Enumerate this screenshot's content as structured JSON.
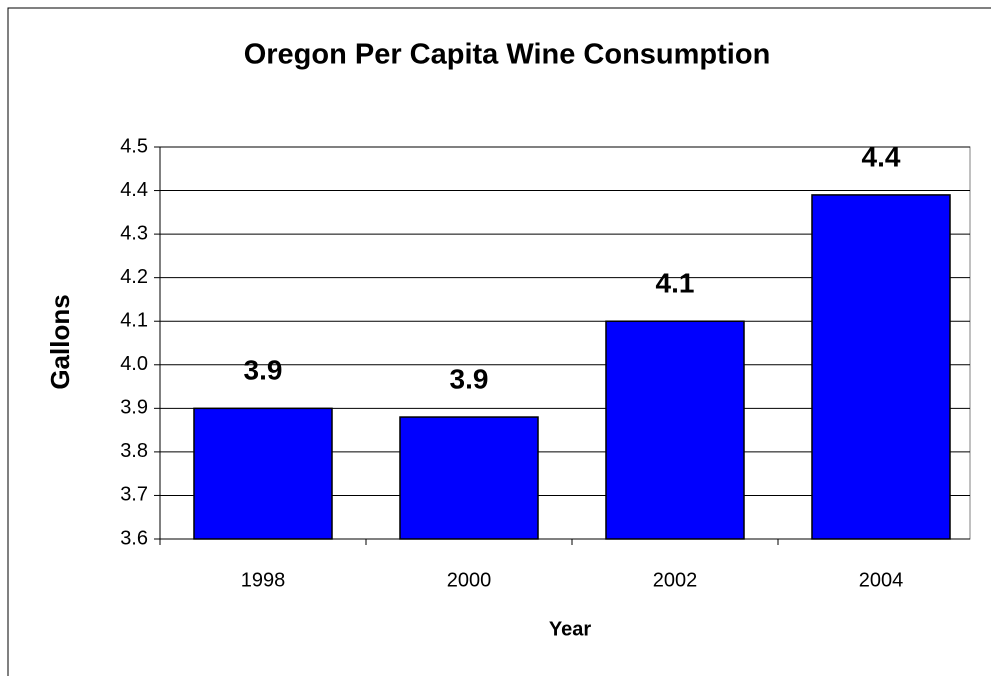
{
  "chart_data": {
    "type": "bar",
    "title": "Oregon Per Capita Wine Consumption",
    "x_label": "Year",
    "y_label": "Gallons",
    "categories": [
      "1998",
      "2000",
      "2002",
      "2004"
    ],
    "values": [
      3.9,
      3.88,
      4.1,
      4.39
    ],
    "value_labels": [
      "3.9",
      "3.9",
      "4.1",
      "4.4"
    ],
    "color": "#0000ff",
    "ylim": [
      3.6,
      4.5
    ],
    "yticks": [
      3.6,
      3.7,
      3.8,
      3.9,
      {
        "value": 4,
        "label": "4.0"
      },
      4.1,
      4.2,
      4.3,
      4.4,
      4.5
    ],
    "grid": true
  }
}
